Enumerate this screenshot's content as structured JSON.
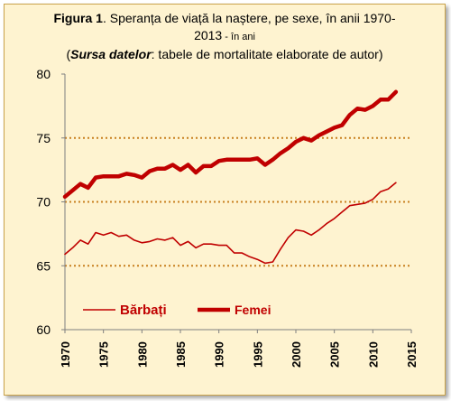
{
  "title": {
    "label": "Figura 1",
    "text_line1": ". Speranța de viață la naștere, pe sexe, în anii 1970-",
    "text_line2": "2013",
    "unit": " - în ani",
    "source_label": "Sursa datelor",
    "source_text": ": tabele de mortalitate  elaborate de autor"
  },
  "colors": {
    "series": "#c00000",
    "grid": "#c8801f",
    "background": "#fef3d0",
    "border": "#c9a24a"
  },
  "chart_data": {
    "type": "line",
    "x": [
      1970,
      1971,
      1972,
      1973,
      1974,
      1975,
      1976,
      1977,
      1978,
      1979,
      1980,
      1981,
      1982,
      1983,
      1984,
      1985,
      1986,
      1987,
      1988,
      1989,
      1990,
      1991,
      1992,
      1993,
      1994,
      1995,
      1996,
      1997,
      1998,
      1999,
      2000,
      2001,
      2002,
      2003,
      2004,
      2005,
      2006,
      2007,
      2008,
      2009,
      2010,
      2011,
      2012,
      2013
    ],
    "series": [
      {
        "name": "Bărbați",
        "line": "thin",
        "values": [
          65.9,
          66.4,
          67.0,
          66.7,
          67.6,
          67.4,
          67.6,
          67.3,
          67.4,
          67.0,
          66.8,
          66.9,
          67.1,
          67.0,
          67.2,
          66.6,
          66.9,
          66.4,
          66.7,
          66.7,
          66.6,
          66.6,
          66.0,
          66.0,
          65.7,
          65.5,
          65.2,
          65.3,
          66.3,
          67.2,
          67.8,
          67.7,
          67.4,
          67.8,
          68.3,
          68.7,
          69.2,
          69.7,
          69.8,
          69.9,
          70.2,
          70.8,
          71.0,
          71.5
        ]
      },
      {
        "name": "Femei",
        "line": "thick",
        "values": [
          70.4,
          70.9,
          71.4,
          71.1,
          71.9,
          72.0,
          72.0,
          72.0,
          72.2,
          72.1,
          71.9,
          72.4,
          72.6,
          72.6,
          72.9,
          72.5,
          72.9,
          72.3,
          72.8,
          72.8,
          73.2,
          73.3,
          73.3,
          73.3,
          73.3,
          73.4,
          72.9,
          73.3,
          73.8,
          74.2,
          74.7,
          75.0,
          74.8,
          75.2,
          75.5,
          75.8,
          76.0,
          76.8,
          77.3,
          77.2,
          77.5,
          78.0,
          78.0,
          78.6
        ]
      }
    ],
    "ylim": [
      60,
      80
    ],
    "yticks": [
      60,
      65,
      70,
      75,
      80
    ],
    "xlim": [
      1970,
      2015
    ],
    "xticks": [
      1970,
      1975,
      1980,
      1985,
      1990,
      1995,
      2000,
      2005,
      2010,
      2015
    ],
    "grid": "horizontal dotted at 65, 70, 75",
    "legend": "lower-left inside plot"
  }
}
